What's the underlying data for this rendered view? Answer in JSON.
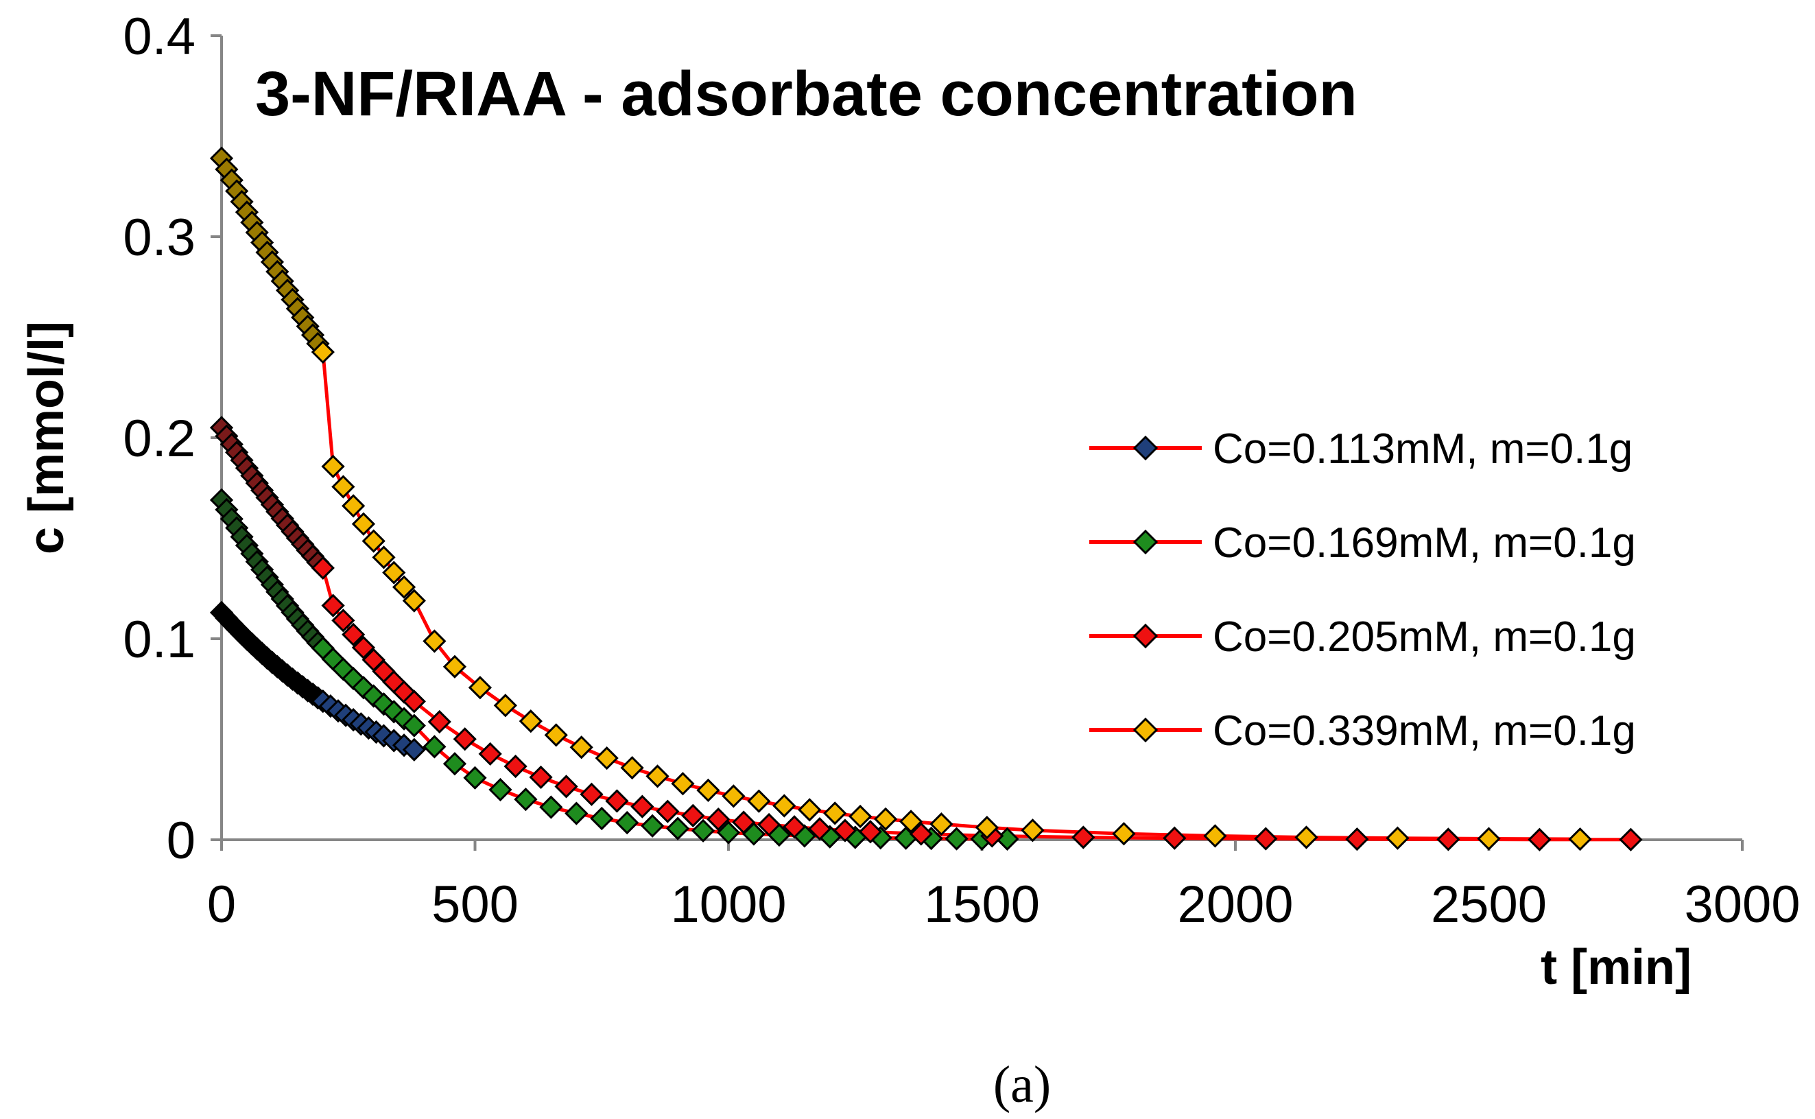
{
  "chart_data": {
    "type": "line",
    "title": "3-NF/RIAA - adsorbate concentration",
    "xlabel": "t [min]",
    "ylabel": "c [mmol/l]",
    "caption": "(a)",
    "xlim": [
      0,
      3000
    ],
    "ylim": [
      0,
      0.4
    ],
    "xticks": [
      0,
      500,
      1000,
      1500,
      2000,
      2500,
      3000
    ],
    "yticks": [
      0,
      0.1,
      0.2,
      0.3,
      0.4
    ],
    "xtick_labels": [
      "0",
      "500",
      "1000",
      "1500",
      "2000",
      "2500",
      "3000"
    ],
    "ytick_labels": [
      "0",
      "0.1",
      "0.2",
      "0.3",
      "0.4"
    ],
    "grid": false,
    "legend_position": "right",
    "fit_line_color": "#ff0000",
    "series": [
      {
        "name": "Co=0.113mM, m=0.1g",
        "marker_color": "#1f3f7a",
        "early_color": "#000000",
        "x": [
          0,
          10,
          20,
          30,
          40,
          50,
          60,
          70,
          80,
          90,
          100,
          110,
          120,
          130,
          140,
          150,
          160,
          170,
          180,
          190,
          200,
          215,
          230,
          245,
          260,
          275,
          290,
          305,
          320,
          340,
          360,
          380
        ],
        "y": [
          0.113,
          0.1102,
          0.1075,
          0.1049,
          0.1023,
          0.0998,
          0.0974,
          0.095,
          0.0927,
          0.0904,
          0.0882,
          0.0861,
          0.084,
          0.0819,
          0.0799,
          0.078,
          0.0761,
          0.0742,
          0.0724,
          0.0706,
          0.0689,
          0.0665,
          0.0641,
          0.0619,
          0.0597,
          0.0576,
          0.0556,
          0.0536,
          0.0517,
          0.0493,
          0.047,
          0.0448
        ]
      },
      {
        "name": "Co=0.169mM, m=0.1g",
        "marker_color": "#1e8c1e",
        "early_color": "#1b4d1b",
        "x": [
          0,
          10,
          20,
          30,
          40,
          50,
          60,
          70,
          80,
          90,
          100,
          110,
          120,
          130,
          140,
          150,
          160,
          170,
          180,
          190,
          200,
          220,
          240,
          260,
          280,
          300,
          320,
          340,
          360,
          380,
          420,
          460,
          500,
          550,
          600,
          650,
          700,
          750,
          800,
          850,
          900,
          950,
          1000,
          1050,
          1100,
          1150,
          1200,
          1250,
          1300,
          1350,
          1400,
          1450,
          1500,
          1550
        ],
        "y": [
          0.169,
          0.1642,
          0.1596,
          0.1551,
          0.1507,
          0.1464,
          0.1423,
          0.1383,
          0.1344,
          0.1306,
          0.1269,
          0.1233,
          0.1198,
          0.1164,
          0.1131,
          0.1099,
          0.1068,
          0.1038,
          0.1009,
          0.098,
          0.0953,
          0.0899,
          0.0849,
          0.0802,
          0.0757,
          0.0715,
          0.0675,
          0.0637,
          0.0602,
          0.0568,
          0.0463,
          0.0378,
          0.0308,
          0.0249,
          0.0201,
          0.0162,
          0.0131,
          0.0106,
          0.0085,
          0.0069,
          0.0056,
          0.0045,
          0.0036,
          0.0029,
          0.0024,
          0.0019,
          0.0015,
          0.0012,
          0.001,
          0.0008,
          0.0007,
          0.0005,
          0.0004,
          0.0004
        ]
      },
      {
        "name": "Co=0.205mM, m=0.1g",
        "marker_color": "#ee1111",
        "early_color": "#7a1a1a",
        "x": [
          0,
          10,
          20,
          30,
          40,
          50,
          60,
          70,
          80,
          90,
          100,
          110,
          120,
          130,
          140,
          150,
          160,
          170,
          180,
          190,
          200,
          220,
          240,
          260,
          280,
          300,
          320,
          340,
          360,
          380,
          430,
          480,
          530,
          580,
          630,
          680,
          730,
          780,
          830,
          880,
          930,
          980,
          1030,
          1080,
          1130,
          1180,
          1230,
          1280,
          1380,
          1520,
          1700,
          1880,
          2060,
          2240,
          2420,
          2600,
          2780
        ],
        "y": [
          0.205,
          0.2008,
          0.1967,
          0.1927,
          0.1888,
          0.1849,
          0.1811,
          0.1774,
          0.1738,
          0.1702,
          0.1667,
          0.1632,
          0.1598,
          0.1565,
          0.1533,
          0.1501,
          0.147,
          0.1439,
          0.141,
          0.138,
          0.1352,
          0.1165,
          0.1091,
          0.1021,
          0.0956,
          0.0895,
          0.0838,
          0.0785,
          0.0735,
          0.0688,
          0.0587,
          0.0501,
          0.0427,
          0.0365,
          0.0311,
          0.0265,
          0.0226,
          0.0193,
          0.0165,
          0.0141,
          0.012,
          0.0102,
          0.0087,
          0.0075,
          0.0064,
          0.0054,
          0.0046,
          0.004,
          0.0029,
          0.0019,
          0.0012,
          0.0008,
          0.0005,
          0.0003,
          0.0002,
          0.0001,
          0.0001
        ]
      },
      {
        "name": "Co=0.339mM, m=0.1g",
        "marker_color": "#f5b800",
        "early_color": "#9a7a00",
        "x": [
          0,
          10,
          20,
          30,
          40,
          50,
          60,
          70,
          80,
          90,
          100,
          110,
          120,
          130,
          140,
          150,
          160,
          170,
          180,
          190,
          200,
          220,
          240,
          260,
          280,
          300,
          320,
          340,
          360,
          380,
          420,
          460,
          510,
          560,
          610,
          660,
          710,
          760,
          810,
          860,
          910,
          960,
          1010,
          1060,
          1110,
          1160,
          1210,
          1260,
          1310,
          1360,
          1420,
          1510,
          1600,
          1780,
          1960,
          2140,
          2320,
          2500,
          2680
        ],
        "y": [
          0.339,
          0.3335,
          0.3281,
          0.3227,
          0.3174,
          0.3122,
          0.3071,
          0.3021,
          0.2971,
          0.2922,
          0.2874,
          0.2826,
          0.2779,
          0.2733,
          0.2687,
          0.2642,
          0.2598,
          0.2554,
          0.2511,
          0.2468,
          0.2426,
          0.1857,
          0.1756,
          0.1661,
          0.1571,
          0.1486,
          0.1405,
          0.1329,
          0.1257,
          0.1189,
          0.0988,
          0.0861,
          0.0757,
          0.0668,
          0.059,
          0.0521,
          0.046,
          0.0406,
          0.0358,
          0.0316,
          0.0279,
          0.0246,
          0.0217,
          0.0192,
          0.0169,
          0.0149,
          0.0132,
          0.0116,
          0.0103,
          0.0091,
          0.0078,
          0.0061,
          0.0047,
          0.003,
          0.0019,
          0.0012,
          0.0008,
          0.0005,
          0.0003
        ]
      }
    ]
  }
}
